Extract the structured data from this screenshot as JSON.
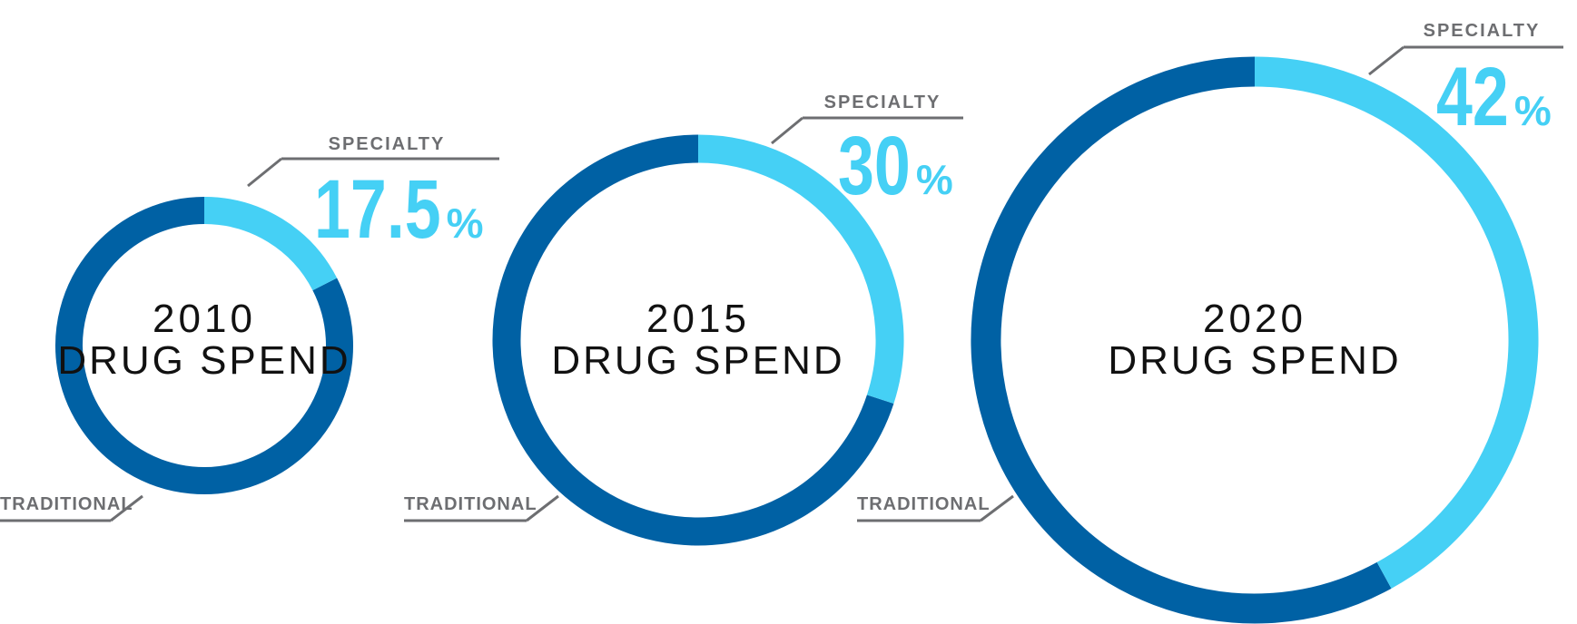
{
  "colors": {
    "specialty": "#45d0f5",
    "traditional": "#0061a4",
    "leader": "#6d6e71",
    "center_text": "#111111",
    "background": "#ffffff"
  },
  "chart_data": {
    "type": "pie",
    "variant": "donut",
    "series_labels": {
      "specialty": "SPECIALTY",
      "traditional": "TRADITIONAL"
    },
    "charts": [
      {
        "year": "2010",
        "caption": "DRUG SPEND",
        "specialty_value": 17.5,
        "specialty_display": "17.5",
        "traditional_value": 82.5
      },
      {
        "year": "2015",
        "caption": "DRUG SPEND",
        "specialty_value": 30,
        "specialty_display": "30",
        "traditional_value": 70
      },
      {
        "year": "2020",
        "caption": "DRUG SPEND",
        "specialty_value": 42,
        "specialty_display": "42",
        "traditional_value": 58
      }
    ],
    "percent_sign": "%",
    "relative_size": "ring size grows with year"
  }
}
